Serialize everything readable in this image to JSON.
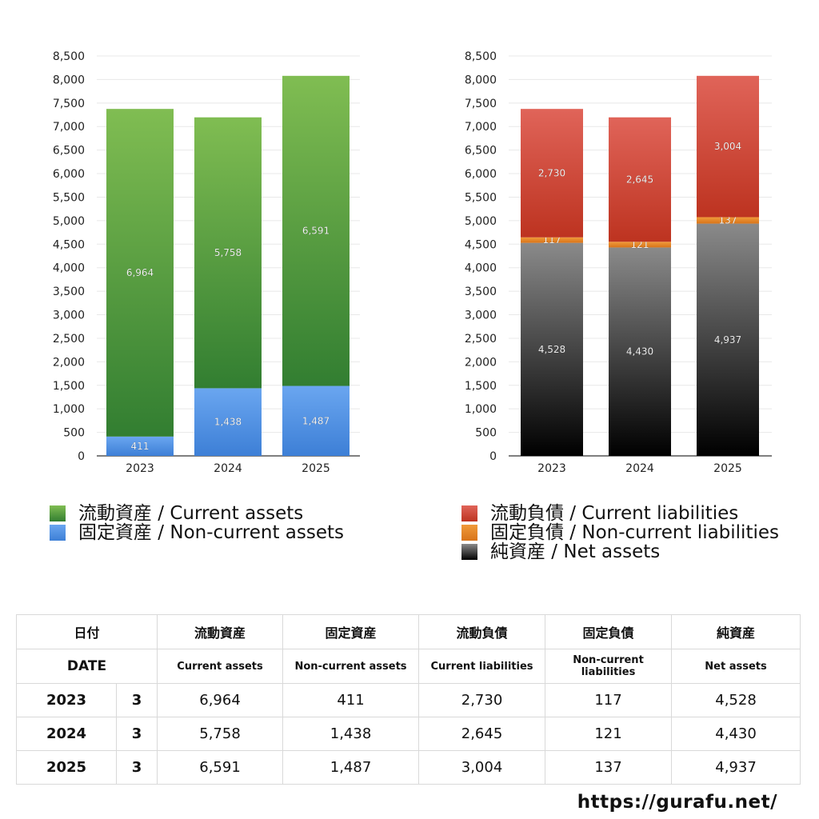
{
  "chart_data": [
    {
      "type": "bar",
      "stacked": true,
      "categories": [
        "2023",
        "2024",
        "2025"
      ],
      "ylim": [
        0,
        8500
      ],
      "yticks": [
        0,
        500,
        1000,
        1500,
        2000,
        2500,
        3000,
        3500,
        4000,
        4500,
        5000,
        5500,
        6000,
        6500,
        7000,
        7500,
        8000,
        8500
      ],
      "grid": true,
      "legend_position": "bottom",
      "series": [
        {
          "name": "固定資産 / Non-current assets",
          "values": [
            411,
            1438,
            1487
          ],
          "color_top": "#6aa6f0",
          "color_bottom": "#3d7fd6"
        },
        {
          "name": "流動資産 / Current assets",
          "values": [
            6964,
            5758,
            6591
          ],
          "color_top": "#80bd52",
          "color_bottom": "#327e31"
        }
      ]
    },
    {
      "type": "bar",
      "stacked": true,
      "categories": [
        "2023",
        "2024",
        "2025"
      ],
      "ylim": [
        0,
        8500
      ],
      "yticks": [
        0,
        500,
        1000,
        1500,
        2000,
        2500,
        3000,
        3500,
        4000,
        4500,
        5000,
        5500,
        6000,
        6500,
        7000,
        7500,
        8000,
        8500
      ],
      "grid": true,
      "legend_position": "bottom",
      "series": [
        {
          "name": "純資産 / Net assets",
          "values": [
            4528,
            4430,
            4937
          ],
          "color_top": "#8a8a8a",
          "color_bottom": "#000000"
        },
        {
          "name": "固定負債 / Non-current liabilities",
          "values": [
            117,
            121,
            137
          ],
          "color_top": "#f09a3a",
          "color_bottom": "#d8741a"
        },
        {
          "name": "流動負債 / Current liabilities",
          "values": [
            2730,
            2645,
            3004
          ],
          "color_top": "#e06459",
          "color_bottom": "#bd3320"
        }
      ]
    }
  ],
  "legend_left": [
    {
      "label": "流動資産 / Current assets",
      "color_top": "#80bd52",
      "color_bottom": "#327e31"
    },
    {
      "label": "固定資産 / Non-current assets",
      "color_top": "#6aa6f0",
      "color_bottom": "#3d7fd6"
    }
  ],
  "legend_right": [
    {
      "label": "流動負債 / Current liabilities",
      "color_top": "#e06459",
      "color_bottom": "#bd3320"
    },
    {
      "label": "固定負債 / Non-current liabilities",
      "color_top": "#f09a3a",
      "color_bottom": "#d8741a"
    },
    {
      "label": "純資産 / Net assets",
      "color_top": "#8a8a8a",
      "color_bottom": "#000000"
    }
  ],
  "table": {
    "header_jp": [
      "日付",
      "流動資産",
      "固定資産",
      "流動負債",
      "固定負債",
      "純資産"
    ],
    "header_en": [
      "DATE",
      "Current assets",
      "Non-current assets",
      "Current liabilities",
      "Non-current liabilities",
      "Net assets"
    ],
    "rows": [
      {
        "year": "2023",
        "month": "3",
        "values": [
          "6,964",
          "411",
          "2,730",
          "117",
          "4,528"
        ]
      },
      {
        "year": "2024",
        "month": "3",
        "values": [
          "5,758",
          "1,438",
          "2,645",
          "121",
          "4,430"
        ]
      },
      {
        "year": "2025",
        "month": "3",
        "values": [
          "6,591",
          "1,487",
          "3,004",
          "137",
          "4,937"
        ]
      }
    ]
  },
  "site": "https://gurafu.net/"
}
